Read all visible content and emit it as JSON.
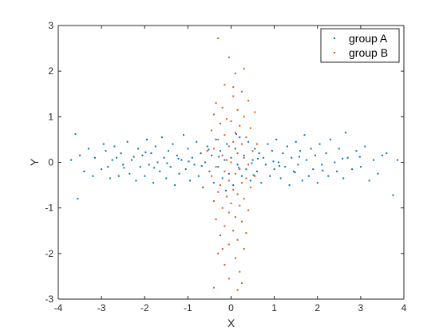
{
  "chart_data": {
    "type": "scatter",
    "xlabel": "X",
    "ylabel": "Y",
    "xlim": [
      -4,
      4
    ],
    "ylim": [
      -3,
      3
    ],
    "xticks": [
      -4,
      -3,
      -2,
      -1,
      0,
      1,
      2,
      3,
      4
    ],
    "yticks": [
      -3,
      -2,
      -1,
      0,
      1,
      2,
      3
    ],
    "grid": false,
    "legend_position": "top-right",
    "series": [
      {
        "name": "group A",
        "color": "#0072bd",
        "points": [
          [
            -3.7,
            0.05
          ],
          [
            -3.6,
            0.62
          ],
          [
            -3.55,
            -0.8
          ],
          [
            -3.5,
            0.15
          ],
          [
            -3.4,
            -0.2
          ],
          [
            -3.3,
            0.3
          ],
          [
            -3.2,
            -0.3
          ],
          [
            -3.15,
            0.1
          ],
          [
            -3.0,
            -0.15
          ],
          [
            -2.95,
            0.4
          ],
          [
            -2.9,
            0.25
          ],
          [
            -2.85,
            -0.1
          ],
          [
            -2.8,
            -0.35
          ],
          [
            -2.7,
            0.35
          ],
          [
            -2.65,
            0.1
          ],
          [
            -2.6,
            -0.3
          ],
          [
            -2.55,
            0.2
          ],
          [
            -2.5,
            -0.05
          ],
          [
            -2.4,
            0.45
          ],
          [
            -2.35,
            -0.25
          ],
          [
            -2.3,
            0.05
          ],
          [
            -2.2,
            -0.4
          ],
          [
            -2.15,
            0.3
          ],
          [
            -2.1,
            -0.1
          ],
          [
            -2.05,
            0.15
          ],
          [
            -2.0,
            -0.3
          ],
          [
            -1.95,
            0.5
          ],
          [
            -1.9,
            -0.05
          ],
          [
            -1.85,
            0.2
          ],
          [
            -1.8,
            -0.45
          ],
          [
            -1.75,
            0.35
          ],
          [
            -1.7,
            0.0
          ],
          [
            -1.65,
            -0.2
          ],
          [
            -1.6,
            0.55
          ],
          [
            -1.55,
            0.1
          ],
          [
            -1.5,
            -0.35
          ],
          [
            -1.45,
            0.25
          ],
          [
            -1.4,
            -0.1
          ],
          [
            -1.35,
            0.4
          ],
          [
            -1.3,
            -0.5
          ],
          [
            -1.25,
            0.15
          ],
          [
            -1.2,
            -0.25
          ],
          [
            -1.15,
            0.05
          ],
          [
            -1.1,
            0.6
          ],
          [
            -1.05,
            -0.15
          ],
          [
            -1.0,
            0.3
          ],
          [
            -0.95,
            -0.4
          ],
          [
            -0.9,
            0.1
          ],
          [
            -0.85,
            -0.05
          ],
          [
            -0.8,
            0.45
          ],
          [
            -0.75,
            -0.3
          ],
          [
            -0.7,
            0.2
          ],
          [
            -0.65,
            -0.55
          ],
          [
            -0.6,
            0.0
          ],
          [
            -0.55,
            0.35
          ],
          [
            -0.5,
            -0.2
          ],
          [
            -0.45,
            0.15
          ],
          [
            -0.4,
            -0.45
          ],
          [
            -0.35,
            0.5
          ],
          [
            -0.3,
            -0.1
          ],
          [
            -0.25,
            0.25
          ],
          [
            -0.2,
            -0.35
          ],
          [
            -0.15,
            0.05
          ],
          [
            -0.1,
            0.4
          ],
          [
            -0.05,
            -0.25
          ],
          [
            0.0,
            0.1
          ],
          [
            0.05,
            -0.5
          ],
          [
            0.1,
            0.3
          ],
          [
            0.15,
            -0.05
          ],
          [
            0.2,
            0.55
          ],
          [
            0.25,
            -0.3
          ],
          [
            0.3,
            0.15
          ],
          [
            0.35,
            -0.15
          ],
          [
            0.4,
            0.45
          ],
          [
            0.45,
            -0.4
          ],
          [
            0.5,
            0.05
          ],
          [
            0.55,
            0.3
          ],
          [
            0.6,
            -0.2
          ],
          [
            0.65,
            0.2
          ],
          [
            0.7,
            -0.45
          ],
          [
            0.75,
            0.1
          ],
          [
            0.8,
            -0.05
          ],
          [
            0.85,
            0.4
          ],
          [
            0.9,
            -0.3
          ],
          [
            0.95,
            0.25
          ],
          [
            1.0,
            -0.15
          ],
          [
            1.05,
            0.5
          ],
          [
            1.1,
            0.0
          ],
          [
            1.15,
            -0.35
          ],
          [
            1.2,
            0.2
          ],
          [
            1.25,
            -0.1
          ],
          [
            1.3,
            0.35
          ],
          [
            1.35,
            -0.5
          ],
          [
            1.4,
            0.1
          ],
          [
            1.45,
            -0.2
          ],
          [
            1.5,
            0.45
          ],
          [
            1.55,
            -0.05
          ],
          [
            1.6,
            0.25
          ],
          [
            1.65,
            -0.4
          ],
          [
            1.7,
            0.6
          ],
          [
            1.75,
            0.05
          ],
          [
            1.8,
            -0.3
          ],
          [
            1.85,
            0.3
          ],
          [
            1.9,
            -0.15
          ],
          [
            1.95,
            0.15
          ],
          [
            2.0,
            -0.45
          ],
          [
            2.05,
            0.4
          ],
          [
            2.1,
            -0.05
          ],
          [
            2.2,
            0.2
          ],
          [
            2.25,
            -0.3
          ],
          [
            2.3,
            0.5
          ],
          [
            2.4,
            0.0
          ],
          [
            2.45,
            -0.2
          ],
          [
            2.5,
            0.3
          ],
          [
            2.6,
            -0.35
          ],
          [
            2.65,
            0.65
          ],
          [
            2.7,
            0.1
          ],
          [
            2.8,
            -0.15
          ],
          [
            2.9,
            0.25
          ],
          [
            3.0,
            -0.1
          ],
          [
            3.1,
            0.35
          ],
          [
            3.2,
            -0.4
          ],
          [
            3.3,
            0.05
          ],
          [
            3.4,
            -0.25
          ],
          [
            3.5,
            0.15
          ],
          [
            3.6,
            0.2
          ],
          [
            3.75,
            -0.72
          ],
          [
            3.85,
            0.05
          ],
          [
            -2.75,
            0.05
          ],
          [
            -2.25,
            0.12
          ],
          [
            -1.78,
            -0.12
          ],
          [
            -1.22,
            0.08
          ],
          [
            -0.68,
            -0.08
          ],
          [
            -0.28,
            0.12
          ],
          [
            0.18,
            -0.12
          ],
          [
            0.62,
            0.08
          ],
          [
            1.12,
            -0.08
          ],
          [
            1.58,
            0.12
          ],
          [
            2.12,
            -0.18
          ],
          [
            2.58,
            0.08
          ],
          [
            -1.48,
            -0.02
          ],
          [
            -0.98,
            0.02
          ],
          [
            0.48,
            -0.02
          ],
          [
            0.98,
            0.02
          ],
          [
            1.48,
            -0.22
          ],
          [
            -1.98,
            0.22
          ],
          [
            -2.48,
            -0.12
          ],
          [
            2.98,
            0.12
          ],
          [
            -0.52,
            0.28
          ],
          [
            0.52,
            -0.28
          ],
          [
            -0.12,
            -0.62
          ],
          [
            0.12,
            0.62
          ]
        ]
      },
      {
        "name": "group B",
        "color": "#d95319",
        "points": [
          [
            -0.3,
            2.72
          ],
          [
            -0.05,
            2.3
          ],
          [
            0.1,
            1.95
          ],
          [
            -0.15,
            1.7
          ],
          [
            0.25,
            1.55
          ],
          [
            0.05,
            1.45
          ],
          [
            -0.35,
            1.3
          ],
          [
            0.4,
            1.35
          ],
          [
            -0.2,
            1.2
          ],
          [
            0.15,
            1.15
          ],
          [
            0.55,
            1.1
          ],
          [
            -0.4,
            1.05
          ],
          [
            0.3,
            1.0
          ],
          [
            -0.1,
            0.95
          ],
          [
            0.0,
            0.9
          ],
          [
            -0.25,
            0.85
          ],
          [
            0.2,
            0.8
          ],
          [
            0.45,
            0.75
          ],
          [
            -0.45,
            0.7
          ],
          [
            0.1,
            0.65
          ],
          [
            -0.15,
            0.6
          ],
          [
            0.35,
            0.55
          ],
          [
            -0.3,
            0.5
          ],
          [
            0.05,
            0.45
          ],
          [
            0.25,
            0.4
          ],
          [
            -0.05,
            0.35
          ],
          [
            -0.4,
            0.3
          ],
          [
            0.5,
            0.25
          ],
          [
            0.15,
            0.2
          ],
          [
            -0.2,
            0.15
          ],
          [
            0.3,
            0.1
          ],
          [
            -0.1,
            0.05
          ],
          [
            0.0,
            0.0
          ],
          [
            0.4,
            -0.05
          ],
          [
            -0.35,
            -0.1
          ],
          [
            0.2,
            -0.15
          ],
          [
            -0.15,
            -0.2
          ],
          [
            0.1,
            -0.25
          ],
          [
            -0.45,
            -0.3
          ],
          [
            0.35,
            -0.35
          ],
          [
            -0.05,
            -0.4
          ],
          [
            0.25,
            -0.45
          ],
          [
            -0.25,
            -0.5
          ],
          [
            0.45,
            -0.55
          ],
          [
            0.05,
            -0.6
          ],
          [
            -0.3,
            -0.65
          ],
          [
            0.15,
            -0.7
          ],
          [
            -0.1,
            -0.75
          ],
          [
            0.3,
            -0.8
          ],
          [
            -0.4,
            -0.85
          ],
          [
            0.0,
            -0.9
          ],
          [
            0.2,
            -0.95
          ],
          [
            -0.2,
            -1.0
          ],
          [
            0.4,
            -1.05
          ],
          [
            -0.05,
            -1.1
          ],
          [
            0.1,
            -1.2
          ],
          [
            -0.35,
            -1.25
          ],
          [
            0.25,
            -1.3
          ],
          [
            -0.15,
            -1.4
          ],
          [
            0.05,
            -1.5
          ],
          [
            0.35,
            -1.55
          ],
          [
            -0.25,
            -1.6
          ],
          [
            0.15,
            -1.7
          ],
          [
            -0.05,
            -1.8
          ],
          [
            0.3,
            -1.9
          ],
          [
            -0.3,
            -2.0
          ],
          [
            0.1,
            -2.1
          ],
          [
            -0.15,
            -2.25
          ],
          [
            0.2,
            -2.4
          ],
          [
            -0.05,
            -2.55
          ],
          [
            0.25,
            -2.65
          ],
          [
            -0.4,
            -2.75
          ],
          [
            0.15,
            -2.8
          ],
          [
            0.6,
            0.4
          ],
          [
            -0.5,
            -0.2
          ],
          [
            0.55,
            -0.3
          ],
          [
            -0.55,
            0.25
          ],
          [
            0.05,
            1.65
          ],
          [
            -0.2,
            -1.9
          ],
          [
            0.3,
            2.05
          ]
        ]
      }
    ]
  }
}
